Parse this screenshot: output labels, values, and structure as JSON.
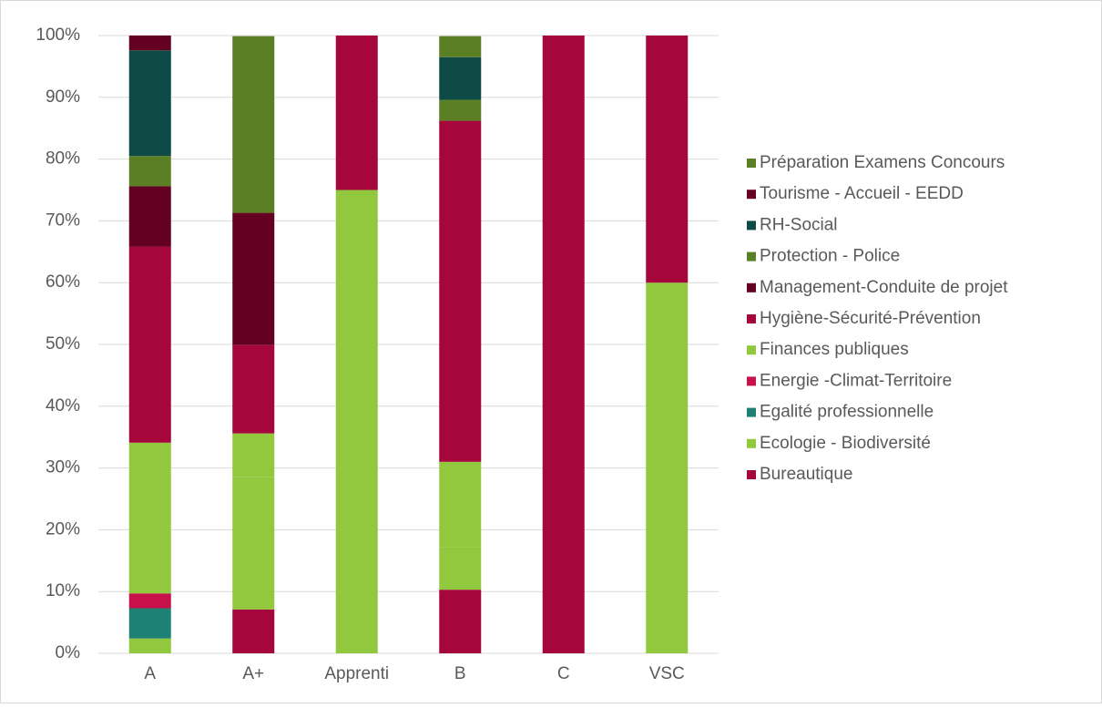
{
  "chart_data": {
    "type": "stacked_bar",
    "categories": [
      "A",
      "A+",
      "Apprenti",
      "B",
      "C",
      "VSC"
    ],
    "series": [
      {
        "name": "Bureautique",
        "color": "#a5063c",
        "values": [
          0,
          7.1,
          0,
          10.3,
          100,
          0
        ]
      },
      {
        "name": "Ecologie - Biodiversité",
        "color": "#92c83e",
        "values": [
          2.4,
          21.4,
          75,
          6.9,
          0,
          60
        ]
      },
      {
        "name": "Egalité professionnelle",
        "color": "#1f8075",
        "values": [
          4.9,
          0,
          0,
          0,
          0,
          0
        ]
      },
      {
        "name": "Energie -Climat-Territoire",
        "color": "#c8104a",
        "values": [
          2.4,
          0,
          0,
          0,
          0,
          0
        ]
      },
      {
        "name": "Finances publiques",
        "color": "#92c83e",
        "values": [
          24.4,
          7.1,
          0,
          13.8,
          0,
          0
        ]
      },
      {
        "name": "Hygiène-Sécurité-Prévention",
        "color": "#a5063c",
        "values": [
          31.7,
          14.3,
          25,
          55.2,
          0,
          40
        ]
      },
      {
        "name": "Management-Conduite de projet",
        "color": "#640022",
        "values": [
          9.8,
          21.4,
          0,
          0,
          0,
          0
        ]
      },
      {
        "name": "Protection - Police",
        "color": "#5b7f25",
        "values": [
          4.9,
          28.6,
          0,
          3.4,
          0,
          0
        ]
      },
      {
        "name": "RH-Social",
        "color": "#0f4b46",
        "values": [
          17.1,
          0,
          0,
          6.9,
          0,
          0
        ]
      },
      {
        "name": "Tourisme - Accueil - EEDD",
        "color": "#640022",
        "values": [
          2.4,
          0,
          0,
          0,
          0,
          0
        ]
      },
      {
        "name": "Préparation Examens Concours",
        "color": "#5b7f25",
        "values": [
          0,
          0,
          0,
          3.4,
          0,
          0
        ]
      }
    ],
    "ylim": [
      0,
      100
    ],
    "yticks": [
      {
        "value": 0,
        "label": "0%"
      },
      {
        "value": 10,
        "label": "10%"
      },
      {
        "value": 20,
        "label": "20%"
      },
      {
        "value": 30,
        "label": "30%"
      },
      {
        "value": 40,
        "label": "40%"
      },
      {
        "value": 50,
        "label": "50%"
      },
      {
        "value": 60,
        "label": "60%"
      },
      {
        "value": 70,
        "label": "70%"
      },
      {
        "value": 80,
        "label": "80%"
      },
      {
        "value": 90,
        "label": "90%"
      },
      {
        "value": 100,
        "label": "100%"
      }
    ],
    "grid": true,
    "legend": "right"
  }
}
